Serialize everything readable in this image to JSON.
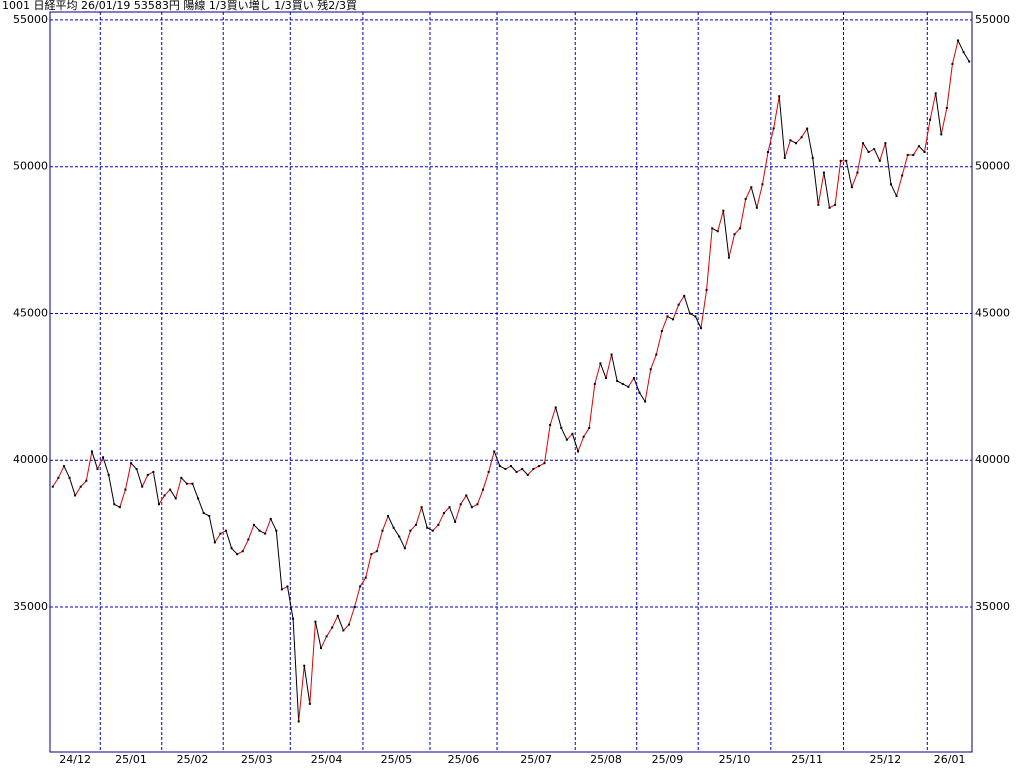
{
  "chart_data": {
    "type": "line",
    "title": "1001 日経平均 26/01/19 53583円 陽線 1/3買い増し 1/3買い 残2/3買",
    "months": [
      {
        "label": "24/12",
        "values": [
          39100,
          39400,
          39800,
          39400,
          38800,
          39100,
          39300,
          40300,
          39700
        ]
      },
      {
        "label": "25/01",
        "values": [
          40100,
          39500,
          38500,
          38400,
          39000,
          39900,
          39700,
          39100,
          39500,
          39600,
          38500
        ]
      },
      {
        "label": "25/02",
        "values": [
          38800,
          39000,
          38700,
          39400,
          39200,
          39200,
          38700,
          38200,
          38100,
          37200,
          37500
        ]
      },
      {
        "label": "25/03",
        "values": [
          37600,
          37000,
          36800,
          36900,
          37300,
          37800,
          37600,
          37500,
          38000,
          37600,
          35600,
          35700
        ]
      },
      {
        "label": "25/04",
        "values": [
          34600,
          31100,
          33000,
          31700,
          34500,
          33600,
          34000,
          34300,
          34700,
          34200,
          34400,
          35000,
          35700
        ]
      },
      {
        "label": "25/05",
        "values": [
          36000,
          36800,
          36900,
          37600,
          38100,
          37700,
          37400,
          37000,
          37600,
          37800,
          38400,
          37700
        ]
      },
      {
        "label": "25/06",
        "values": [
          37600,
          37800,
          38200,
          38400,
          37900,
          38500,
          38800,
          38400,
          38500,
          39000,
          39600,
          40300
        ]
      },
      {
        "label": "25/07",
        "values": [
          39800,
          39700,
          39800,
          39600,
          39700,
          39500,
          39700,
          39800,
          39900,
          41200,
          41800,
          41100,
          40700,
          40900
        ]
      },
      {
        "label": "25/08",
        "values": [
          40300,
          40800,
          41100,
          42600,
          43300,
          42800,
          43600,
          42700,
          42600,
          42500,
          42800
        ]
      },
      {
        "label": "25/09",
        "values": [
          42300,
          42000,
          43100,
          43600,
          44400,
          44900,
          44800,
          45300,
          45600,
          45000,
          44900
        ]
      },
      {
        "label": "25/10",
        "values": [
          44500,
          45800,
          47900,
          47800,
          48500,
          46900,
          47700,
          47900,
          48900,
          49300,
          48600,
          49400,
          50500
        ]
      },
      {
        "label": "25/11",
        "values": [
          51300,
          52400,
          50300,
          50900,
          50800,
          51000,
          51300,
          50300,
          48700,
          49800,
          48600,
          48700,
          50200
        ]
      },
      {
        "label": "25/12",
        "values": [
          50200,
          49300,
          49800,
          50800,
          50500,
          50600,
          50200,
          50800,
          49400,
          49000,
          49700,
          50400,
          50400,
          50700,
          50500
        ]
      },
      {
        "label": "26/01",
        "values": [
          51600,
          52500,
          51100,
          52000,
          53500,
          54300,
          53900,
          53583
        ]
      }
    ],
    "ylim": [
      30060,
      55270
    ],
    "yticks": [
      35000,
      40000,
      45000,
      50000,
      55000
    ],
    "grid": true,
    "grid_color": "#0000cc",
    "up_color": "#e00000",
    "down_color": "#000000",
    "marker_color": "#000000"
  }
}
